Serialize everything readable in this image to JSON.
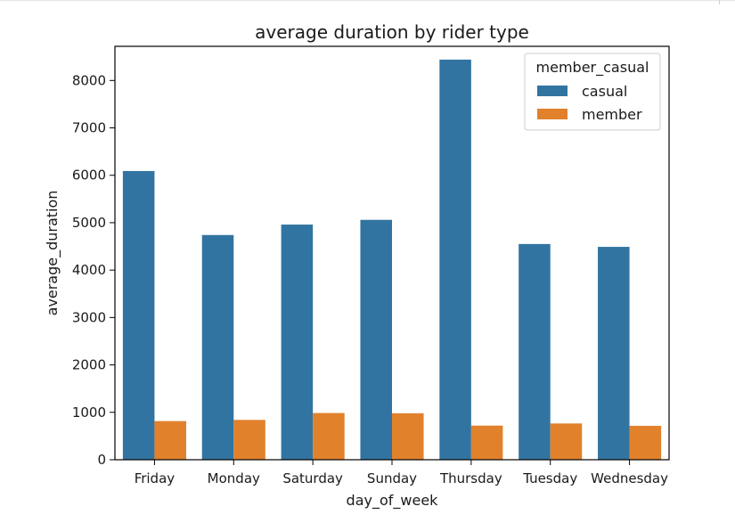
{
  "chart_data": {
    "type": "bar",
    "title": "average duration by rider type",
    "xlabel": "day_of_week",
    "ylabel": "average_duration",
    "categories": [
      "Friday",
      "Monday",
      "Saturday",
      "Sunday",
      "Thursday",
      "Tuesday",
      "Wednesday"
    ],
    "series": [
      {
        "name": "casual",
        "color": "#3274a1",
        "values": [
          6090,
          4740,
          4960,
          5060,
          8440,
          4550,
          4490
        ]
      },
      {
        "name": "member",
        "color": "#e1812c",
        "values": [
          815,
          840,
          985,
          980,
          720,
          765,
          715
        ]
      }
    ],
    "ylim": [
      0,
      8720
    ],
    "yticks": [
      0,
      1000,
      2000,
      3000,
      4000,
      5000,
      6000,
      7000,
      8000
    ],
    "legend": {
      "title": "member_casual",
      "position": "top-right"
    },
    "grid": false
  }
}
